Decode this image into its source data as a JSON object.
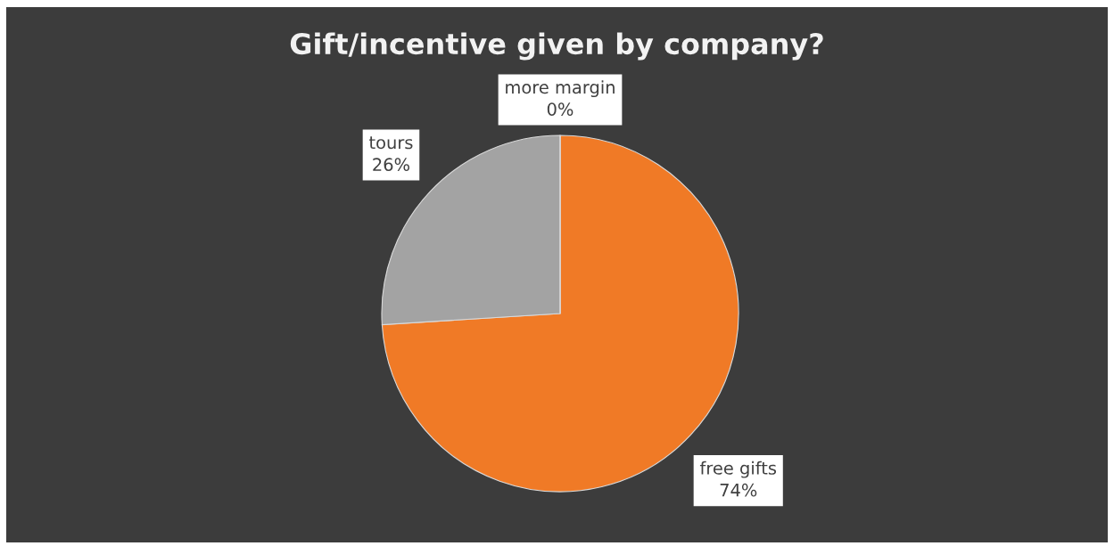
{
  "chart_data": {
    "type": "pie",
    "title": "Gift/incentive given by company?",
    "categories": [
      "free gifts",
      "tours",
      "more margin"
    ],
    "values": [
      74,
      26,
      0
    ],
    "value_labels": [
      "74%",
      "26%",
      "0%"
    ],
    "colors": [
      "#f07a26",
      "#a3a3a3",
      "#4472c4"
    ],
    "legend": false
  }
}
